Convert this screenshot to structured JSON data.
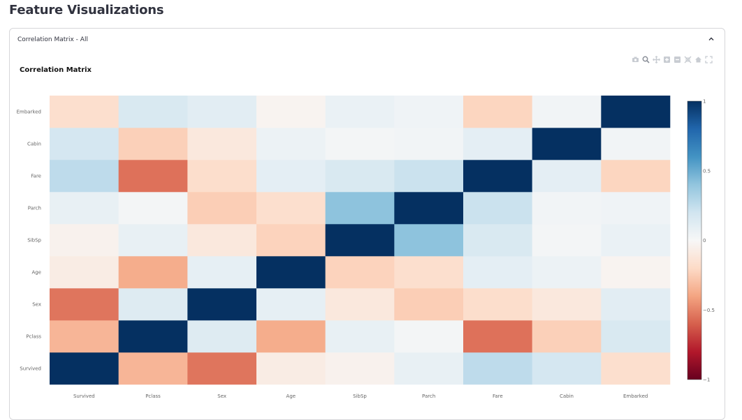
{
  "page": {
    "title": "Feature Visualizations"
  },
  "expander": {
    "label": "Correlation Matrix - All",
    "expanded": true
  },
  "modebar_icons": [
    "camera-icon",
    "zoom-icon",
    "pan-icon",
    "zoom-in-icon",
    "zoom-out-icon",
    "autoscale-icon",
    "home-icon",
    "fullscreen-icon"
  ],
  "chart_data": {
    "type": "heatmap",
    "title": "Correlation Matrix",
    "x": [
      "Survived",
      "Pclass",
      "Sex",
      "Age",
      "SibSp",
      "Parch",
      "Fare",
      "Cabin",
      "Embarked"
    ],
    "y": [
      "Survived",
      "Pclass",
      "Sex",
      "Age",
      "SibSp",
      "Parch",
      "Fare",
      "Cabin",
      "Embarked"
    ],
    "z": [
      [
        1.0,
        -0.34,
        -0.54,
        -0.08,
        -0.04,
        0.08,
        0.26,
        0.18,
        -0.17
      ],
      [
        -0.34,
        1.0,
        0.13,
        -0.37,
        0.08,
        0.02,
        -0.55,
        -0.24,
        0.16
      ],
      [
        -0.54,
        0.13,
        1.0,
        0.09,
        -0.11,
        -0.25,
        -0.18,
        -0.11,
        0.11
      ],
      [
        -0.08,
        -0.37,
        0.09,
        1.0,
        -0.23,
        -0.17,
        0.1,
        0.06,
        -0.03
      ],
      [
        -0.04,
        0.08,
        -0.11,
        -0.23,
        1.0,
        0.41,
        0.16,
        0.02,
        0.07
      ],
      [
        0.08,
        0.02,
        -0.25,
        -0.17,
        0.41,
        1.0,
        0.22,
        0.03,
        0.04
      ],
      [
        0.26,
        -0.55,
        -0.18,
        0.1,
        0.16,
        0.22,
        1.0,
        0.1,
        -0.22
      ],
      [
        0.18,
        -0.24,
        -0.11,
        0.06,
        0.02,
        0.03,
        0.1,
        1.0,
        0.03
      ],
      [
        -0.17,
        0.16,
        0.11,
        -0.03,
        0.07,
        0.04,
        -0.22,
        0.03,
        1.0
      ]
    ],
    "zmin": -1,
    "zmax": 1,
    "colorscale": "RdBu",
    "colorbar_ticks": [
      {
        "value": 1,
        "label": "1"
      },
      {
        "value": 0.5,
        "label": "0.5"
      },
      {
        "value": 0,
        "label": "0"
      },
      {
        "value": -0.5,
        "label": "−0.5"
      },
      {
        "value": -1,
        "label": "−1"
      }
    ],
    "grid": false,
    "legend": "colorbar-right"
  }
}
